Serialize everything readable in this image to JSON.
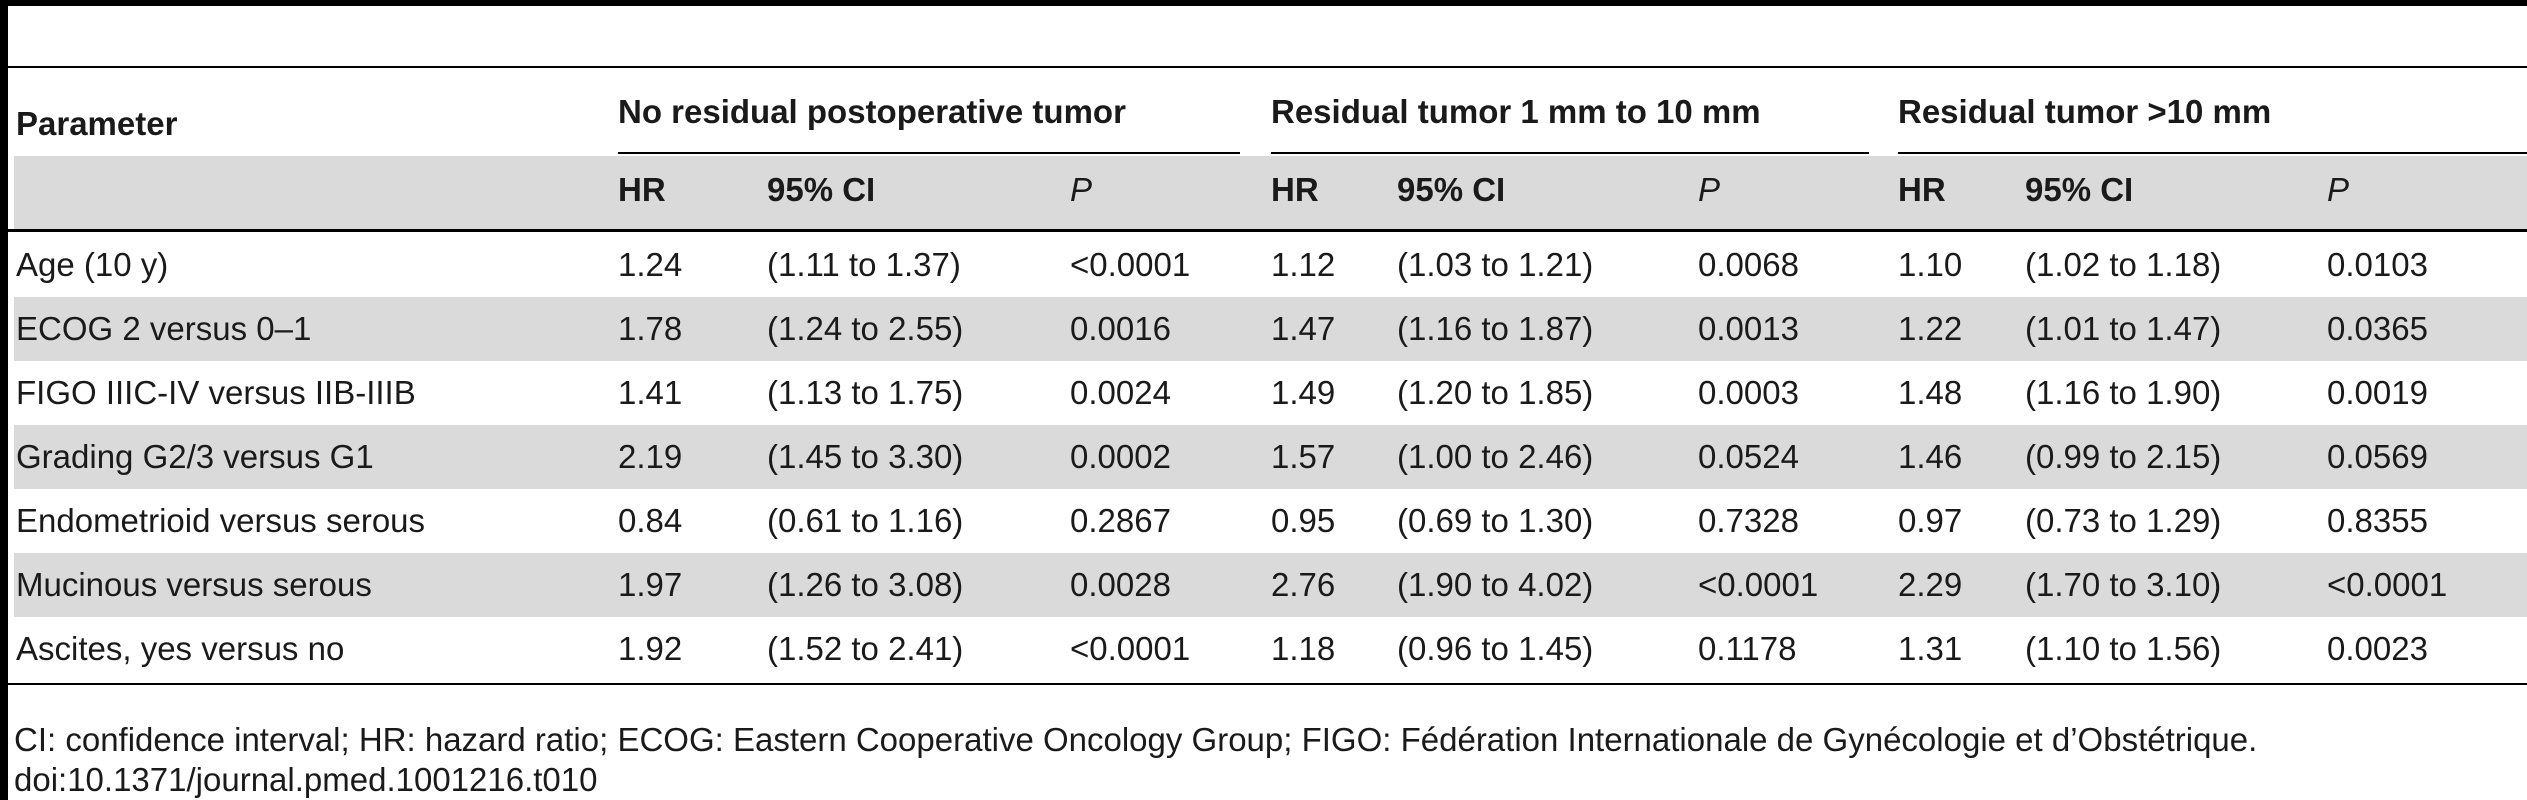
{
  "table": {
    "param_header": "Parameter",
    "groups": [
      "No residual postoperative tumor",
      "Residual tumor 1 mm to 10 mm",
      "Residual tumor >10 mm"
    ],
    "subheaders": [
      "HR",
      "95% CI",
      "P"
    ],
    "rows": [
      {
        "param": "Age (10 y)",
        "vals": [
          "1.24",
          "(1.11 to 1.37)",
          "<0.0001",
          "1.12",
          "(1.03 to 1.21)",
          "0.0068",
          "1.10",
          "(1.02 to 1.18)",
          "0.0103"
        ]
      },
      {
        "param": "ECOG 2 versus 0–1",
        "vals": [
          "1.78",
          "(1.24 to 2.55)",
          "0.0016",
          "1.47",
          "(1.16 to 1.87)",
          "0.0013",
          "1.22",
          "(1.01 to 1.47)",
          "0.0365"
        ]
      },
      {
        "param": "FIGO IIIC-IV versus IIB-IIIB",
        "vals": [
          "1.41",
          "(1.13 to 1.75)",
          "0.0024",
          "1.49",
          "(1.20 to 1.85)",
          "0.0003",
          "1.48",
          "(1.16 to 1.90)",
          "0.0019"
        ]
      },
      {
        "param": "Grading G2/3 versus G1",
        "vals": [
          "2.19",
          "(1.45 to 3.30)",
          "0.0002",
          "1.57",
          "(1.00 to 2.46)",
          "0.0524",
          "1.46",
          "(0.99 to 2.15)",
          "0.0569"
        ]
      },
      {
        "param": "Endometrioid versus serous",
        "vals": [
          "0.84",
          "(0.61 to 1.16)",
          "0.2867",
          "0.95",
          "(0.69 to 1.30)",
          "0.7328",
          "0.97",
          "(0.73 to 1.29)",
          "0.8355"
        ]
      },
      {
        "param": "Mucinous versus serous",
        "vals": [
          "1.97",
          "(1.26 to 3.08)",
          "0.0028",
          "2.76",
          "(1.90 to 4.02)",
          "<0.0001",
          "2.29",
          "(1.70 to 3.10)",
          "<0.0001"
        ]
      },
      {
        "param": "Ascites, yes versus no",
        "vals": [
          "1.92",
          "(1.52 to 2.41)",
          "<0.0001",
          "1.18",
          "(0.96 to 1.45)",
          "0.1178",
          "1.31",
          "(1.10 to 1.56)",
          "0.0023"
        ]
      }
    ]
  },
  "footnote": {
    "abbreviations": "CI: confidence interval; HR: hazard ratio; ECOG: Eastern Cooperative Oncology Group; FIGO: Fédération Internationale de Gynécologie et d’Obstétrique.",
    "doi": "doi:10.1371/journal.pmed.1001216.t010"
  },
  "colors": {
    "rule": "#000000",
    "shade": "#dadada",
    "text": "#1a1a1a"
  }
}
